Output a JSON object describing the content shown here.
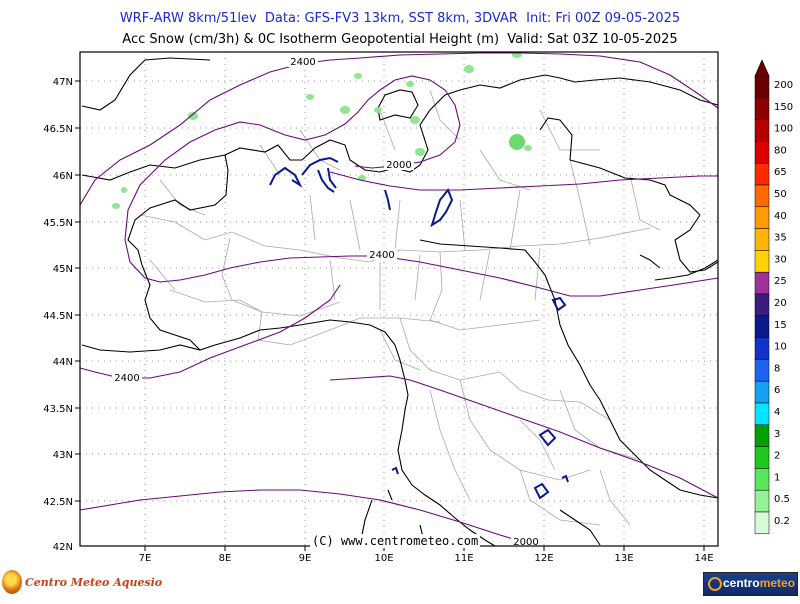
{
  "header": {
    "line1": "WRF-ARW 8km/51lev  Data: GFS-FV3 13km, SST 8km, 3DVAR  Init: Fri 00Z 09-05-2025",
    "line2": "Acc Snow (cm/3h) & 0C Isotherm Geopotential Height (m)  Valid: Sat 03Z 10-05-2025"
  },
  "map": {
    "lat_ticks": [
      "47N",
      "46.5N",
      "46N",
      "45.5N",
      "45N",
      "44.5N",
      "44N",
      "43.5N",
      "43N",
      "42.5N",
      "42N"
    ],
    "lon_ticks": [
      "7E",
      "8E",
      "9E",
      "10E",
      "11E",
      "12E",
      "13E",
      "14E"
    ],
    "contour_labels": [
      {
        "id": "c2400-top",
        "text": "2400"
      },
      {
        "id": "c2000-alps",
        "text": "2000"
      },
      {
        "id": "c2400-mid",
        "text": "2400"
      },
      {
        "id": "c2400-west",
        "text": "2400"
      },
      {
        "id": "c2000-south",
        "text": "2000"
      }
    ],
    "copyright": "(C) www.centrometeo.com"
  },
  "colorbar": {
    "unit": "cm/3h",
    "levels": [
      {
        "label": "200",
        "color": "#6b0000"
      },
      {
        "label": "150",
        "color": "#8c0000"
      },
      {
        "label": "100",
        "color": "#b40000"
      },
      {
        "label": "80",
        "color": "#e00000"
      },
      {
        "label": "65",
        "color": "#ff2a00"
      },
      {
        "label": "50",
        "color": "#ff6a00"
      },
      {
        "label": "40",
        "color": "#ff9a00"
      },
      {
        "label": "35",
        "color": "#ffb400"
      },
      {
        "label": "30",
        "color": "#ffd200"
      },
      {
        "label": "25",
        "color": "#a0309a"
      },
      {
        "label": "20",
        "color": "#3c1c7c"
      },
      {
        "label": "15",
        "color": "#0a1a8a"
      },
      {
        "label": "10",
        "color": "#1232c8"
      },
      {
        "label": "8",
        "color": "#1c64f0"
      },
      {
        "label": "6",
        "color": "#16a0f0"
      },
      {
        "label": "4",
        "color": "#00e6ff"
      },
      {
        "label": "3",
        "color": "#00a000"
      },
      {
        "label": "2",
        "color": "#1ec81e"
      },
      {
        "label": "1",
        "color": "#5ae65a"
      },
      {
        "label": "0.5",
        "color": "#96f096"
      },
      {
        "label": "0.2",
        "color": "#d8fad8"
      }
    ]
  },
  "logos": {
    "left_text": "Centro Meteo Aquesio",
    "right_text_a": "centro",
    "right_text_b": "meteo"
  },
  "colors": {
    "header_line1": "#1a2ad0",
    "contour": "#6a0a7a",
    "lakes": "#0a1a8a",
    "snow": "#8ee68e"
  }
}
